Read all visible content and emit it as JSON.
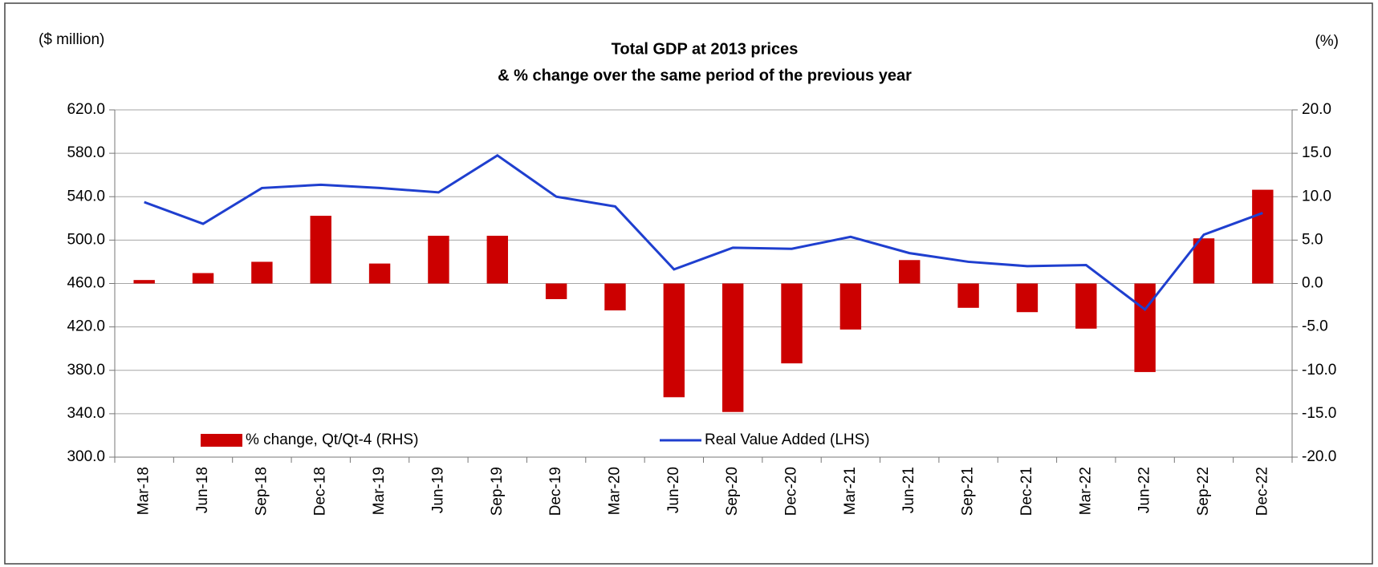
{
  "chart_data": {
    "type": "bar",
    "title": "Total GDP at 2013 prices",
    "subtitle": "& % change over the same period of the previous year",
    "y_label": "($ million)",
    "y2_label": "(%)",
    "categories": [
      "Mar-18",
      "Jun-18",
      "Sep-18",
      "Dec-18",
      "Mar-19",
      "Jun-19",
      "Sep-19",
      "Dec-19",
      "Mar-20",
      "Jun-20",
      "Sep-20",
      "Dec-20",
      "Mar-21",
      "Jun-21",
      "Sep-21",
      "Dec-21",
      "Mar-22",
      "Jun-22",
      "Sep-22",
      "Dec-22"
    ],
    "series": [
      {
        "name": "% change, Qt/Qt-4 (RHS)",
        "type": "bar",
        "axis": "y2",
        "color": "#cc0000",
        "values": [
          0.4,
          1.2,
          2.5,
          7.8,
          2.3,
          5.5,
          5.5,
          -1.8,
          -3.1,
          -13.1,
          -14.8,
          -9.2,
          -5.3,
          2.7,
          -2.8,
          -3.3,
          -5.2,
          -10.2,
          5.2,
          10.8
        ]
      },
      {
        "name": "Real Value Added (LHS)",
        "type": "line",
        "axis": "y",
        "color": "#1f3fcf",
        "values": [
          535,
          515,
          548,
          551,
          548,
          544,
          578,
          540,
          531,
          473,
          493,
          492,
          503,
          488,
          480,
          476,
          477,
          436,
          505,
          525
        ]
      }
    ],
    "ylim": [
      300,
      620
    ],
    "yticks": [
      {
        "value": 300,
        "label": "300.0"
      },
      {
        "value": 340,
        "label": "340.0"
      },
      {
        "value": 380,
        "label": "380.0"
      },
      {
        "value": 420,
        "label": "420.0"
      },
      {
        "value": 460,
        "label": "460.0"
      },
      {
        "value": 500,
        "label": "500.0"
      },
      {
        "value": 540,
        "label": "540.0"
      },
      {
        "value": 580,
        "label": "580.0"
      },
      {
        "value": 620,
        "label": "620.0"
      }
    ],
    "y2lim": [
      -20,
      20
    ],
    "y2ticks": [
      {
        "value": -20,
        "label": "-20.0"
      },
      {
        "value": -15,
        "label": "-15.0"
      },
      {
        "value": -10,
        "label": "-10.0"
      },
      {
        "value": -5,
        "label": "-5.0"
      },
      {
        "value": 0,
        "label": "0.0"
      },
      {
        "value": 5,
        "label": "5.0"
      },
      {
        "value": 10,
        "label": "10.0"
      },
      {
        "value": 15,
        "label": "15.0"
      },
      {
        "value": 20,
        "label": "20.0"
      }
    ],
    "grid": true
  }
}
